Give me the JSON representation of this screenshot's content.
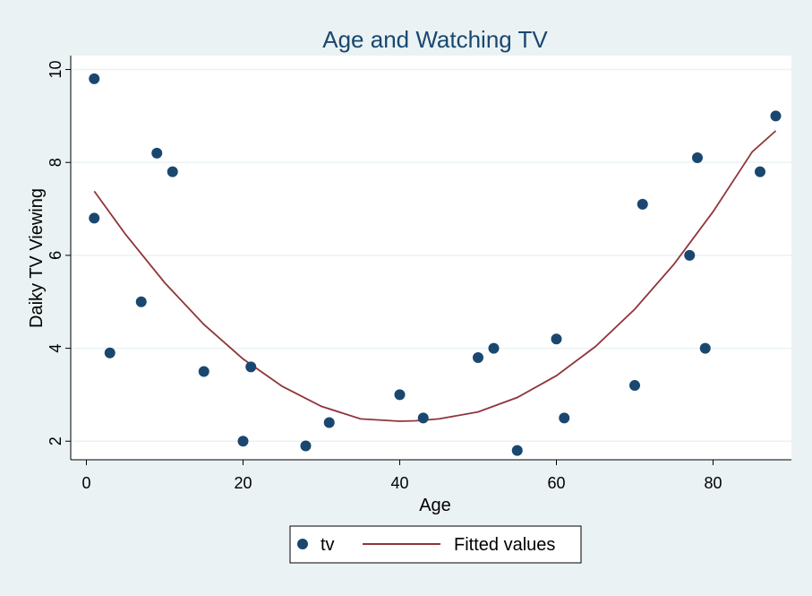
{
  "chart_data": {
    "type": "scatter",
    "title": "Age and Watching TV",
    "xlabel": "Age",
    "ylabel": "Daiky TV Viewing",
    "xlim": [
      -2,
      90
    ],
    "ylim": [
      1.6,
      10.3
    ],
    "xticks": [
      0,
      20,
      40,
      60,
      80
    ],
    "yticks": [
      2,
      4,
      6,
      8,
      10
    ],
    "grid": true,
    "legend_position": "bottom",
    "series": [
      {
        "name": "tv",
        "kind": "scatter",
        "color": "#1a476f",
        "points": [
          [
            1,
            9.8
          ],
          [
            1,
            6.8
          ],
          [
            3,
            3.9
          ],
          [
            7,
            5.0
          ],
          [
            9,
            8.2
          ],
          [
            11,
            7.8
          ],
          [
            15,
            3.5
          ],
          [
            20,
            2.0
          ],
          [
            21,
            3.6
          ],
          [
            28,
            1.9
          ],
          [
            31,
            2.4
          ],
          [
            40,
            3.0
          ],
          [
            43,
            2.5
          ],
          [
            50,
            3.8
          ],
          [
            52,
            4.0
          ],
          [
            55,
            1.8
          ],
          [
            60,
            4.2
          ],
          [
            61,
            2.5
          ],
          [
            70,
            3.2
          ],
          [
            71,
            7.1
          ],
          [
            77,
            6.0
          ],
          [
            78,
            8.1
          ],
          [
            79,
            4.0
          ],
          [
            86,
            7.8
          ],
          [
            88,
            9.0
          ]
        ]
      },
      {
        "name": "Fitted values",
        "kind": "line",
        "color": "#90353b",
        "x": [
          1,
          5,
          10,
          15,
          20,
          25,
          30,
          35,
          40,
          42,
          45,
          50,
          55,
          60,
          65,
          70,
          75,
          80,
          85,
          88
        ],
        "y": [
          7.38,
          6.45,
          5.41,
          4.51,
          3.77,
          3.18,
          2.75,
          2.48,
          2.43,
          2.44,
          2.48,
          2.63,
          2.94,
          3.41,
          4.04,
          4.84,
          5.81,
          6.94,
          8.23,
          8.68
        ]
      }
    ]
  }
}
